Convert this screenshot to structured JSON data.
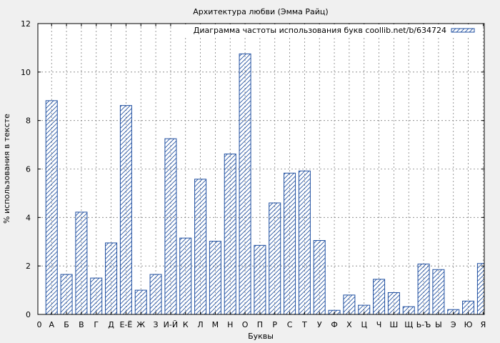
{
  "chart_data": {
    "type": "bar",
    "title": "Архитектура любви (Эмма Райц)",
    "xlabel": "Буквы",
    "ylabel": "% использования в тексте",
    "ylim": [
      0,
      12
    ],
    "yticks": [
      0,
      2,
      4,
      6,
      8,
      10,
      12
    ],
    "grid": true,
    "legend_position": "top-right",
    "x_origin_label": "0",
    "categories": [
      "А",
      "Б",
      "В",
      "Г",
      "Д",
      "Е-Ё",
      "Ж",
      "З",
      "И-Й",
      "К",
      "Л",
      "М",
      "Н",
      "О",
      "П",
      "Р",
      "С",
      "Т",
      "У",
      "Ф",
      "Х",
      "Ц",
      "Ч",
      "Ш",
      "Щ",
      "Ь-Ъ",
      "Ы",
      "Э",
      "Ю",
      "Я"
    ],
    "series": [
      {
        "name": "Диаграмма частоты использования букв coollib.net/b/634724",
        "color": "#1f4fa0",
        "hatch": "diagonal",
        "values": [
          8.82,
          1.65,
          4.22,
          1.5,
          2.95,
          8.62,
          1.0,
          1.65,
          7.25,
          3.15,
          5.58,
          3.02,
          6.62,
          10.75,
          2.85,
          4.6,
          5.83,
          5.92,
          3.05,
          0.17,
          0.8,
          0.38,
          1.45,
          0.9,
          0.32,
          2.08,
          1.85,
          0.2,
          0.55,
          2.1
        ]
      }
    ]
  }
}
